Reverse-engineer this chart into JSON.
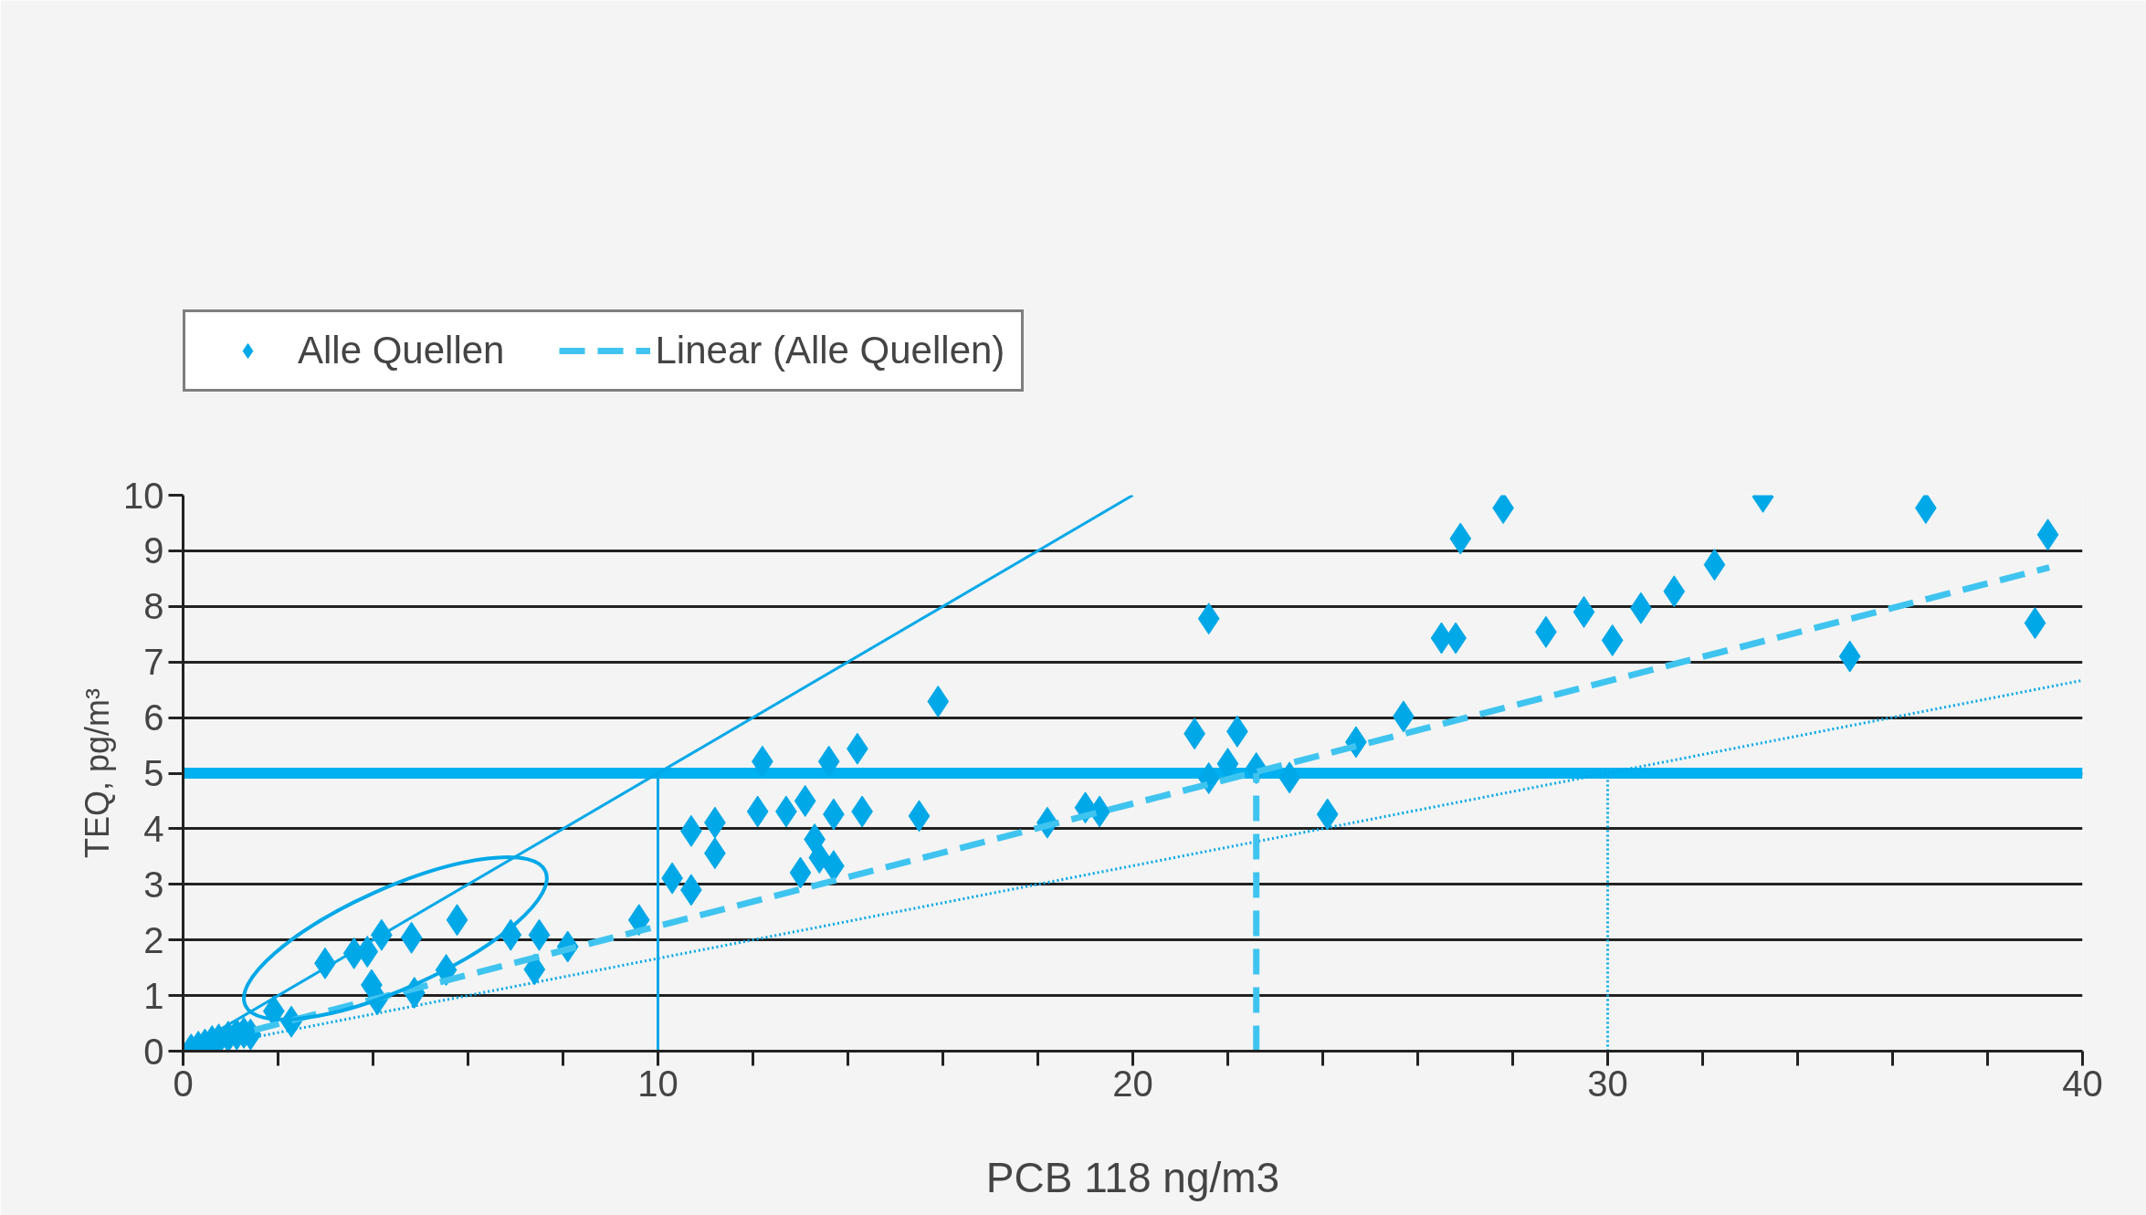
{
  "chart_data": {
    "type": "scatter",
    "xlabel": "PCB 118 ng/m3",
    "ylabel": "TEQ, pg/m³",
    "xlim": [
      0,
      40
    ],
    "ylim": [
      0,
      10
    ],
    "xticks": [
      0,
      {
        "value": 2,
        "label": null
      },
      {
        "value": 4,
        "label": null
      },
      {
        "value": 6,
        "label": null
      },
      {
        "value": 8,
        "label": null
      },
      10,
      {
        "value": 12,
        "label": null
      },
      {
        "value": 14,
        "label": null
      },
      {
        "value": 16,
        "label": null
      },
      {
        "value": 18,
        "label": null
      },
      20,
      {
        "value": 22,
        "label": null
      },
      {
        "value": 24,
        "label": null
      },
      {
        "value": 26,
        "label": null
      },
      {
        "value": 28,
        "label": null
      },
      30,
      {
        "value": 32,
        "label": null
      },
      {
        "value": 34,
        "label": null
      },
      {
        "value": 36,
        "label": null
      },
      {
        "value": 38,
        "label": null
      },
      40
    ],
    "yticks": [
      0,
      1,
      2,
      3,
      4,
      5,
      6,
      7,
      8,
      9,
      10
    ],
    "grid": "y",
    "legend": "top left",
    "marker": "none",
    "series": [
      {
        "name": "Alle Quellen",
        "color": "#00a8e8",
        "marker": "diamond",
        "x": [
          33.27,
          27.8,
          36.7,
          39.27,
          26.9,
          32.25,
          31.4,
          30.7,
          29.5,
          21.6,
          28.7,
          26.5,
          26.8,
          30.1,
          39.0,
          35.1,
          15.9,
          25.7,
          21.3,
          22.2,
          24.7,
          14.2,
          12.2,
          13.6,
          22.0,
          22.6,
          21.6,
          23.3,
          13.1,
          12.1,
          12.7,
          13.7,
          14.3,
          15.5,
          24.1,
          18.2,
          11.2,
          10.7,
          19.0,
          19.3,
          13.3,
          11.2,
          13.4,
          13.7,
          13.0,
          10.3,
          10.7,
          9.6,
          5.77,
          4.18,
          4.81,
          2.99,
          3.6,
          3.88,
          6.9,
          7.5,
          8.1,
          5.54,
          7.4,
          3.97,
          4.09,
          4.87,
          1.91,
          2.28,
          0.17,
          0.32,
          0.46,
          0.61,
          0.75,
          0.95,
          1.13,
          1.28,
          1.42
        ],
        "values": [
          9.97,
          9.77,
          9.77,
          9.29,
          9.22,
          8.75,
          8.27,
          7.97,
          7.9,
          7.78,
          7.54,
          7.43,
          7.43,
          7.39,
          7.7,
          7.1,
          6.29,
          6.02,
          5.71,
          5.75,
          5.56,
          5.44,
          5.21,
          5.21,
          5.17,
          5.09,
          4.91,
          4.92,
          4.5,
          4.31,
          4.31,
          4.26,
          4.31,
          4.23,
          4.26,
          4.11,
          4.11,
          3.96,
          4.38,
          4.31,
          3.81,
          3.56,
          3.48,
          3.33,
          3.21,
          3.11,
          2.9,
          2.36,
          2.36,
          2.09,
          2.04,
          1.58,
          1.76,
          1.79,
          2.09,
          2.09,
          1.88,
          1.46,
          1.47,
          1.19,
          0.93,
          1.05,
          0.72,
          0.53,
          0.03,
          0.08,
          0.12,
          0.18,
          0.21,
          0.26,
          0.3,
          0.33,
          0.3
        ]
      },
      {
        "name": "Linear (Alle Quellen)",
        "color": "#3fc4f0",
        "type": "line",
        "line_style": "dashed",
        "x": [
          1.5,
          39.3
        ],
        "values": [
          0.38,
          8.7
        ]
      },
      {
        "color": "#00a8e8",
        "type": "line",
        "line_style": "solid",
        "x": [
          0,
          20
        ],
        "values": [
          0,
          10
        ]
      },
      {
        "color": "#00a8e8",
        "type": "line",
        "line_style": "dotted",
        "x": [
          0,
          40
        ],
        "values": [
          0,
          6.67
        ]
      },
      {
        "color": "#00a8e8",
        "type": "line",
        "line_style": "solid",
        "x": [
          10,
          10
        ],
        "values": [
          0,
          5
        ]
      },
      {
        "color": "#3fc4f0",
        "type": "line",
        "line_style": "dashed",
        "x": [
          22.6,
          22.6
        ],
        "values": [
          0,
          5
        ]
      },
      {
        "color": "#00a8e8",
        "type": "line",
        "line_style": "dotted",
        "x": [
          30,
          30
        ],
        "values": [
          0,
          5
        ]
      }
    ],
    "ref_lines": [
      {
        "axis": "y",
        "value": 5,
        "color": "#00b0f0"
      }
    ]
  }
}
